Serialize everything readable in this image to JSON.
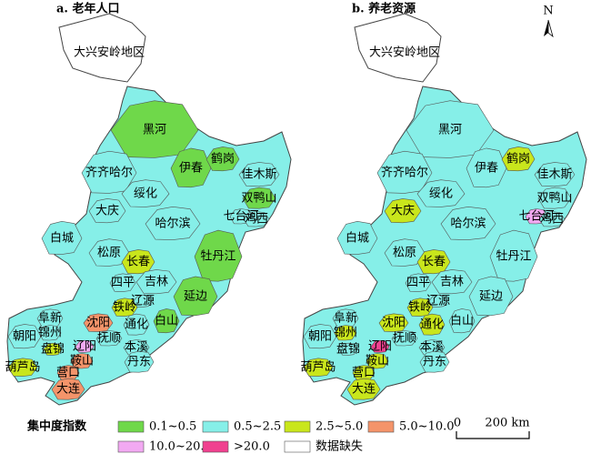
{
  "panels": [
    {
      "title": "a. 老年人口"
    },
    {
      "title": "b. 养老资源"
    }
  ],
  "regions": [
    "大兴安岭地区",
    "黑河",
    "齐齐哈尔",
    "伊春",
    "鹤岗",
    "佳木斯",
    "绥化",
    "双鸭山",
    "大庆",
    "七台河",
    "哈尔滨",
    "鸡西",
    "白城",
    "松原",
    "牡丹江",
    "长春",
    "吉林",
    "四平",
    "铁岭",
    "辽源",
    "延边",
    "阜新",
    "沈阳",
    "通化",
    "朝阳",
    "锦州",
    "白山",
    "盘锦",
    "辽阳",
    "抚顺",
    "本溪",
    "鞍山",
    "丹东",
    "葫芦岛",
    "营口",
    "大连"
  ],
  "legend": {
    "title": "集中度指数",
    "items": [
      "0.1~0.5",
      "0.5~2.5",
      "2.5~5.0",
      "5.0~10.0",
      "10.0~20.0",
      ">20.0",
      "数据缺失"
    ]
  },
  "scale_bar": {
    "labels": [
      "0",
      "200 km"
    ]
  },
  "north_arrow": "N"
}
